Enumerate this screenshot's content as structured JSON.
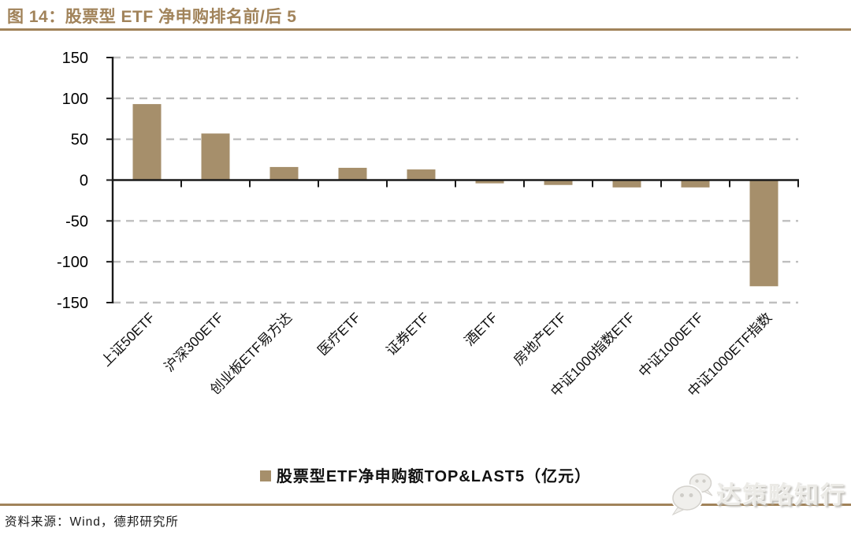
{
  "header": {
    "title": "图 14：股票型 ETF 净申购排名前/后 5"
  },
  "chart_data": {
    "type": "bar",
    "title": "股票型ETF净申购排名前/后5",
    "categories": [
      "上证50ETF",
      "沪深300ETF",
      "创业板ETF易方达",
      "医疗ETF",
      "证券ETF",
      "酒ETF",
      "房地产ETF",
      "中证1000指数ETF",
      "中证1000ETF",
      "中证1000ETF指数"
    ],
    "series": [
      {
        "name": "股票型ETF净申购额TOP&LAST5（亿元）",
        "values": [
          93,
          57,
          16,
          15,
          13,
          -4,
          -6,
          -9,
          -9,
          -130
        ]
      }
    ],
    "unit": "亿元",
    "xlabel": "",
    "ylabel": "",
    "ylim": [
      -150,
      150
    ],
    "yticks": [
      150,
      100,
      50,
      0,
      -50,
      -100,
      -150
    ],
    "grid": "horizontal-dashed",
    "legend_position": "bottom",
    "x_tick_label_rotation": 45
  },
  "legend": {
    "label": "股票型ETF净申购额TOP&LAST5（亿元）"
  },
  "footer": {
    "source": "资料来源：Wind，德邦研究所"
  },
  "watermark": {
    "icon": "wechat-icon",
    "text": "达策略知行"
  },
  "colors": {
    "accent_brown": "#A1835A",
    "bar_fill": "#A68F6B",
    "gridline": "#BFBFBF",
    "axis": "#1A1A1A"
  }
}
